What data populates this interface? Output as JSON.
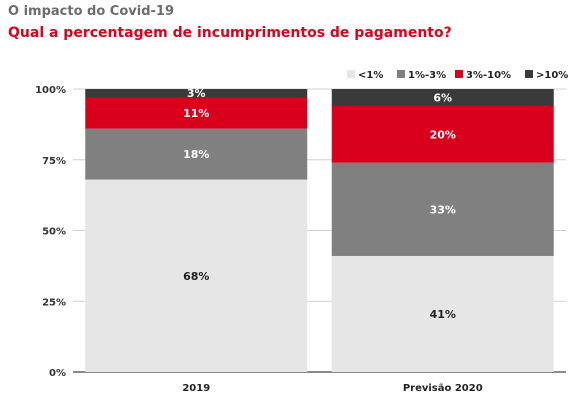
{
  "header": {
    "title": "O impacto do Covid-19",
    "subtitle": "Qual a percentagem de incumprimentos de pagamento?"
  },
  "chart_data": {
    "type": "bar",
    "stacked": true,
    "categories": [
      "2019",
      "Previsão 2020"
    ],
    "series": [
      {
        "name": "<1%",
        "values": [
          68,
          41
        ],
        "color": "#e6e6e6",
        "label_color": "#222222"
      },
      {
        "name": "1%-3%",
        "values": [
          18,
          33
        ],
        "color": "#808080",
        "label_color": "#ffffff"
      },
      {
        "name": "3%-10%",
        "values": [
          11,
          20
        ],
        "color": "#d9001b",
        "label_color": "#ffffff"
      },
      {
        "name": ">10%",
        "values": [
          3,
          6
        ],
        "color": "#3a3a3a",
        "label_color": "#ffffff"
      }
    ],
    "data_labels": [
      [
        "68%",
        "41%"
      ],
      [
        "18%",
        "33%"
      ],
      [
        "11%",
        "20%"
      ],
      [
        "3%",
        "6%"
      ]
    ],
    "y_ticks": [
      0,
      25,
      50,
      75,
      100
    ],
    "y_tick_labels": [
      "0%",
      "25%",
      "50%",
      "75%",
      "100%"
    ],
    "ylim": [
      0,
      100
    ],
    "legend_position": "top-right"
  }
}
